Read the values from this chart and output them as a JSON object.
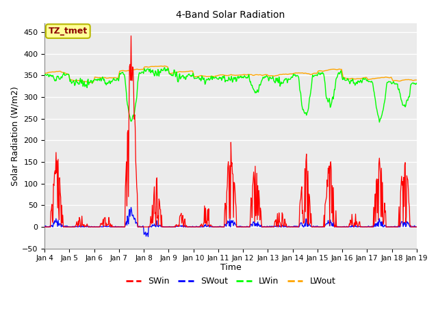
{
  "title": "4-Band Solar Radiation",
  "xlabel": "Time",
  "ylabel": "Solar Radiation (W/m2)",
  "ylim": [
    -50,
    470
  ],
  "yticks": [
    -50,
    0,
    50,
    100,
    150,
    200,
    250,
    300,
    350,
    400,
    450
  ],
  "annotation_text": "TZ_tmet",
  "annotation_color": "#8b0000",
  "annotation_bg": "#ffff99",
  "annotation_edge": "#b8b800",
  "bg_color": "#ebebeb",
  "grid_color": "white",
  "days": 15,
  "seed": 12345
}
